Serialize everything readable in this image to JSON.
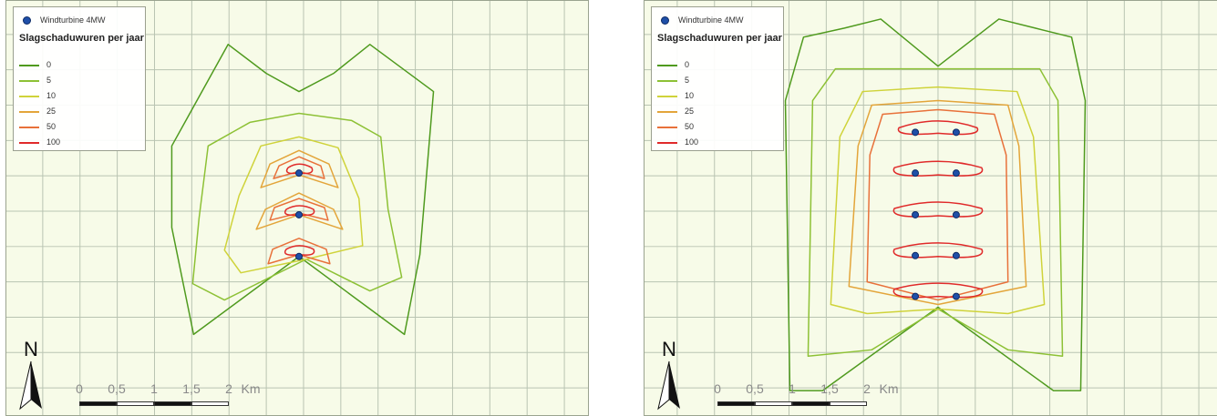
{
  "legend": {
    "turbine_label": "Windturbine 4MW",
    "title": "Slagschaduwuren per jaar",
    "items": [
      {
        "label": "0",
        "color": "#4f9a1e"
      },
      {
        "label": "5",
        "color": "#8dc135"
      },
      {
        "label": "10",
        "color": "#cfd33a"
      },
      {
        "label": "25",
        "color": "#e3a53a"
      },
      {
        "label": "50",
        "color": "#e8713a"
      },
      {
        "label": "100",
        "color": "#e02a2a"
      }
    ]
  },
  "north_label": "N",
  "scale": {
    "ticks": [
      "0",
      "0,5",
      "1",
      "1,5",
      "2"
    ],
    "unit": "Km"
  },
  "colors": {
    "map_background": "#f7fbe8",
    "grid": "#b9c4b2",
    "turbine": "#1f4fa8"
  },
  "maps": [
    {
      "name": "left",
      "turbine_count": 3
    },
    {
      "name": "right",
      "turbine_count": 10
    }
  ]
}
